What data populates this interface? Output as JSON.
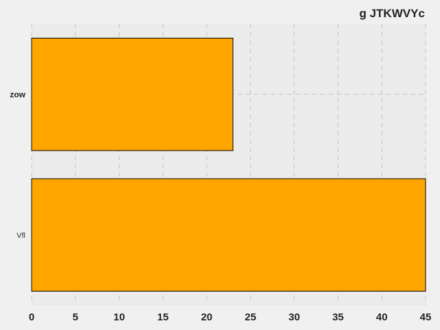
{
  "chart_data": {
    "type": "bar",
    "orientation": "horizontal",
    "title": "g JTKWVYc",
    "categories": [
      "zow",
      "Vfl"
    ],
    "values": [
      23,
      45
    ],
    "xlim": [
      0,
      45
    ],
    "xticks": [
      0,
      5,
      10,
      15,
      20,
      25,
      30,
      35,
      40,
      45
    ],
    "grid": true,
    "bar_color": "#ffa500",
    "edge_color": "#000000",
    "plot_background": "#ebebeb",
    "figure_background": "#f0f0f0",
    "grid_color": "#bfbfbf"
  }
}
